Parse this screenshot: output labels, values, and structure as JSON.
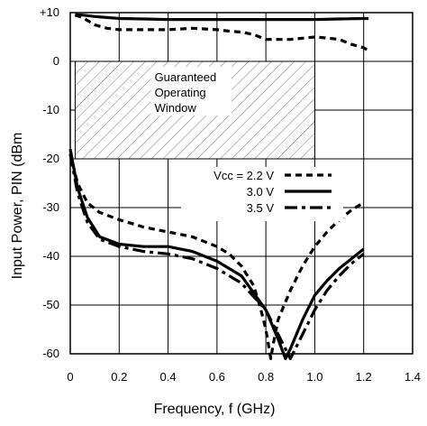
{
  "chart_data": {
    "type": "line",
    "xlabel": "Frequency, f (GHz)",
    "ylabel": "Input Power, PIN (dBm",
    "xlim": [
      0,
      1.4
    ],
    "ylim": [
      -60,
      10
    ],
    "x_ticks": [
      "0",
      "0.2",
      "0.4",
      "0.6",
      "0.8",
      "1.0",
      "1.2",
      "1.4"
    ],
    "x_tick_values": [
      0,
      0.2,
      0.4,
      0.6,
      0.8,
      1.0,
      1.2,
      1.4
    ],
    "y_ticks": [
      "+10",
      "0",
      "-10",
      "-20",
      "-30",
      "-40",
      "-50",
      "-60"
    ],
    "y_tick_values": [
      10,
      0,
      -10,
      -20,
      -30,
      -40,
      -50,
      -60
    ],
    "grid": true,
    "legend_placement": "right-middle",
    "annotation": {
      "lines": [
        "Guaranteed",
        "Operating",
        "Window"
      ],
      "x_range": [
        0.02,
        1.0
      ],
      "y_range": [
        -20,
        0
      ]
    },
    "series": [
      {
        "name": "Vcc = 2.2 V",
        "style": "dashed",
        "x": [
          0.02,
          0.05,
          0.1,
          0.15,
          0.2,
          0.3,
          0.4,
          0.5,
          0.6,
          0.65,
          0.7,
          0.75,
          0.8,
          0.9,
          1.0,
          1.05,
          1.1,
          1.15,
          1.2,
          1.22
        ],
        "y": [
          9.5,
          9.0,
          7.5,
          6.8,
          6.5,
          6.5,
          6.5,
          6.8,
          6.5,
          6.2,
          6.0,
          5.5,
          4.5,
          4.5,
          5.0,
          4.8,
          4.5,
          3.5,
          2.8,
          2.2
        ]
      },
      {
        "name": "",
        "style": "solid",
        "x": [
          0.02,
          0.05,
          0.1,
          0.2,
          0.3,
          0.4,
          0.5,
          0.6,
          0.7,
          0.8,
          0.9,
          1.0,
          1.1,
          1.2,
          1.22
        ],
        "y": [
          9.6,
          9.5,
          9.2,
          8.8,
          8.7,
          8.6,
          8.6,
          8.6,
          8.6,
          8.6,
          8.6,
          8.6,
          8.7,
          8.8,
          8.8
        ]
      },
      {
        "name": "Vcc = 2.2 V",
        "style": "dashed",
        "x": [
          0.0,
          0.03,
          0.07,
          0.12,
          0.2,
          0.3,
          0.4,
          0.5,
          0.55,
          0.6,
          0.65,
          0.7,
          0.75,
          0.78,
          0.8,
          0.81,
          0.82,
          0.83,
          0.85,
          0.9,
          0.95,
          1.0,
          1.05,
          1.1,
          1.15,
          1.2
        ],
        "y": [
          -19,
          -25,
          -29,
          -31,
          -32.5,
          -34,
          -35,
          -36,
          -37,
          -38,
          -39.5,
          -42,
          -46,
          -51,
          -55,
          -58,
          -61,
          -58,
          -53,
          -47,
          -42,
          -38,
          -35,
          -32.5,
          -30.5,
          -29
        ]
      },
      {
        "name": "3.0 V",
        "style": "solid",
        "x": [
          0.0,
          0.03,
          0.07,
          0.12,
          0.2,
          0.3,
          0.4,
          0.5,
          0.6,
          0.7,
          0.8,
          0.85,
          0.88,
          0.9,
          0.95,
          1.0,
          1.05,
          1.1,
          1.15,
          1.2
        ],
        "y": [
          -18,
          -26,
          -32,
          -36,
          -37.5,
          -38,
          -38,
          -39,
          -41,
          -44,
          -51,
          -57,
          -61,
          -59,
          -53,
          -48,
          -45,
          -42.5,
          -40.5,
          -38.5
        ]
      },
      {
        "name": "3.5 V",
        "style": "dash-dot",
        "x": [
          0.0,
          0.03,
          0.07,
          0.12,
          0.2,
          0.3,
          0.4,
          0.5,
          0.6,
          0.7,
          0.8,
          0.85,
          0.88,
          0.9,
          0.95,
          1.0,
          1.05,
          1.1,
          1.15,
          1.2
        ],
        "y": [
          -19,
          -27,
          -33,
          -36.5,
          -38,
          -39,
          -39.5,
          -40.5,
          -42.5,
          -45.5,
          -51,
          -56,
          -59,
          -61,
          -56,
          -51,
          -47,
          -44,
          -41.5,
          -39.5
        ]
      }
    ],
    "legend": [
      {
        "label": "Vcc = 2.2 V",
        "style": "dashed"
      },
      {
        "label": "3.0 V",
        "style": "solid"
      },
      {
        "label": "3.5 V",
        "style": "dash-dot"
      }
    ]
  }
}
